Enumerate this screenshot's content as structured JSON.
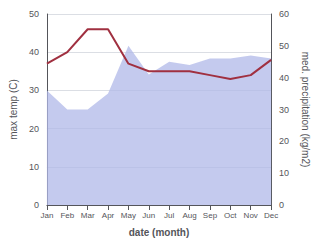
{
  "chart_data": {
    "type": "line",
    "xlabel": "date (month)",
    "ylabel": "max temp (C)",
    "y2label": "med. precipitation (kg/m2)",
    "categories": [
      "Jan",
      "Feb",
      "Mar",
      "Apr",
      "May",
      "Jun",
      "Jul",
      "Aug",
      "Sep",
      "Oct",
      "Nov",
      "Dec"
    ],
    "series": [
      {
        "type": "area",
        "axis": "y2",
        "color": "#b0b8e8",
        "values": [
          36,
          30,
          30,
          35,
          50,
          41,
          45,
          44,
          46,
          46,
          47,
          46
        ]
      },
      {
        "type": "line",
        "color": "#a03040",
        "values": [
          37,
          40,
          46,
          46,
          37,
          35,
          35,
          35,
          34,
          33,
          34,
          38
        ]
      }
    ],
    "ylim": [
      0,
      50
    ],
    "yticks": [
      0,
      10,
      20,
      30,
      40,
      50
    ],
    "y2lim": [
      0,
      60
    ],
    "y2ticks": [
      0,
      10,
      20,
      30,
      40,
      50,
      60
    ],
    "grid": true
  }
}
